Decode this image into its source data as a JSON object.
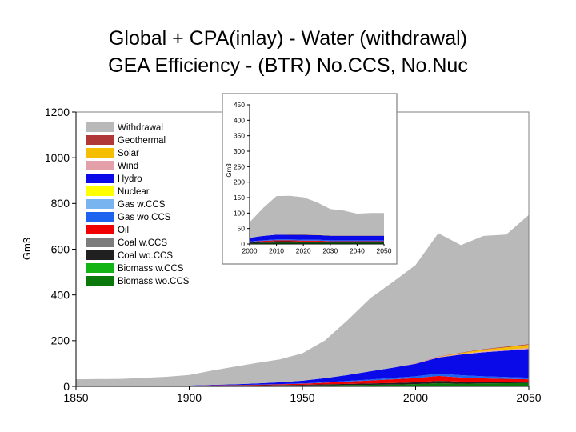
{
  "title_lines": [
    "Global + CPA(inlay) - Water (withdrawal)",
    "GEA Efficiency - (BTR) No.CCS, No.Nuc"
  ],
  "colors": {
    "Withdrawal": "#b9b9b9",
    "Geothermal": "#b03838",
    "Solar": "#f5be00",
    "Wind": "#e4a0a8",
    "Hydro": "#0a0ae8",
    "Nuclear": "#ffff00",
    "Gas w.CCS": "#78b4f0",
    "Gas wo.CCS": "#1c64f0",
    "Oil": "#f00000",
    "Coal w.CCS": "#7c7c7c",
    "Coal wo.CCS": "#202020",
    "Biomass w.CCS": "#14b414",
    "Biomass wo.CCS": "#0a780a"
  },
  "chart_data": [
    {
      "type": "area",
      "stacked": true,
      "title": "Global + CPA(inlay) - Water (withdrawal)",
      "subtitle": "GEA Efficiency - (BTR) No.CCS, No.Nuc",
      "ylabel": "Gm3",
      "xlim": [
        1850,
        2050
      ],
      "ylim": [
        0,
        1200
      ],
      "xticks": [
        "1850",
        "1900",
        "1950",
        "2000",
        "2050"
      ],
      "yticks": [
        "0",
        "200",
        "400",
        "600",
        "800",
        "1000",
        "1200"
      ],
      "legend_position": "top-left inside",
      "legend": [
        "Withdrawal",
        "Geothermal",
        "Solar",
        "Wind",
        "Hydro",
        "Nuclear",
        "Gas w.CCS",
        "Gas wo.CCS",
        "Oil",
        "Coal w.CCS",
        "Coal wo.CCS",
        "Biomass w.CCS",
        "Biomass wo.CCS"
      ],
      "x": [
        1850,
        1870,
        1890,
        1900,
        1910,
        1920,
        1930,
        1940,
        1950,
        1960,
        1970,
        1980,
        1990,
        2000,
        2010,
        2020,
        2030,
        2040,
        2050
      ],
      "series": [
        {
          "name": "Biomass wo.CCS",
          "values": [
            1,
            1,
            2,
            2,
            3,
            3,
            3,
            4,
            4,
            5,
            6,
            7,
            8,
            10,
            14,
            12,
            13,
            14,
            15
          ]
        },
        {
          "name": "Coal wo.CCS",
          "values": [
            0,
            0,
            0,
            1,
            1,
            2,
            2,
            2,
            3,
            4,
            5,
            6,
            7,
            8,
            10,
            9,
            8,
            7,
            6
          ]
        },
        {
          "name": "Oil",
          "values": [
            0,
            0,
            0,
            0,
            1,
            1,
            2,
            3,
            5,
            7,
            10,
            13,
            16,
            18,
            22,
            18,
            14,
            12,
            10
          ]
        },
        {
          "name": "Gas wo.CCS",
          "values": [
            0,
            0,
            0,
            0,
            0,
            0,
            1,
            1,
            1,
            2,
            3,
            4,
            6,
            8,
            10,
            10,
            9,
            8,
            7
          ]
        },
        {
          "name": "Hydro",
          "values": [
            0,
            0,
            0,
            1,
            2,
            3,
            5,
            8,
            12,
            18,
            26,
            36,
            45,
            55,
            70,
            90,
            105,
            115,
            125
          ]
        },
        {
          "name": "Wind",
          "values": [
            0,
            0,
            0,
            0,
            0,
            0,
            0,
            0,
            0,
            0,
            0,
            0,
            0,
            1,
            2,
            3,
            4,
            5,
            6
          ]
        },
        {
          "name": "Solar",
          "values": [
            0,
            0,
            0,
            0,
            0,
            0,
            0,
            0,
            0,
            0,
            0,
            0,
            0,
            0,
            1,
            4,
            8,
            10,
            13
          ]
        },
        {
          "name": "Geothermal",
          "values": [
            0,
            0,
            0,
            0,
            0,
            0,
            0,
            0,
            0,
            0,
            0,
            0,
            0,
            1,
            1,
            2,
            2,
            3,
            3
          ]
        },
        {
          "name": "Withdrawal",
          "values": [
            30,
            32,
            40,
            46,
            62,
            77,
            90,
            100,
            120,
            165,
            240,
            320,
            375,
            430,
            540,
            470,
            495,
            490,
            565
          ]
        }
      ]
    },
    {
      "type": "area",
      "stacked": true,
      "ylabel": "Gm3",
      "xlim": [
        2000,
        2050
      ],
      "ylim": [
        0,
        450
      ],
      "xticks": [
        "2000",
        "2010",
        "2020",
        "2030",
        "2040",
        "2050"
      ],
      "yticks": [
        "0",
        "50",
        "100",
        "150",
        "200",
        "250",
        "300",
        "350",
        "400",
        "450"
      ],
      "x": [
        2000,
        2005,
        2010,
        2015,
        2020,
        2025,
        2030,
        2035,
        2040,
        2045,
        2050
      ],
      "series": [
        {
          "name": "Biomass wo.CCS",
          "values": [
            2,
            3,
            4,
            4,
            4,
            4,
            4,
            4,
            4,
            4,
            4
          ]
        },
        {
          "name": "Coal wo.CCS",
          "values": [
            3,
            4,
            5,
            5,
            4,
            4,
            3,
            3,
            3,
            3,
            3
          ]
        },
        {
          "name": "Oil",
          "values": [
            2,
            3,
            3,
            3,
            3,
            3,
            2,
            2,
            2,
            2,
            2
          ]
        },
        {
          "name": "Gas wo.CCS",
          "values": [
            1,
            2,
            3,
            3,
            3,
            3,
            3,
            3,
            3,
            3,
            3
          ]
        },
        {
          "name": "Hydro",
          "values": [
            12,
            14,
            15,
            15,
            16,
            15,
            15,
            15,
            15,
            15,
            15
          ]
        },
        {
          "name": "Solar",
          "values": [
            0,
            0,
            0,
            1,
            1,
            1,
            1,
            1,
            1,
            1,
            1
          ]
        },
        {
          "name": "Withdrawal",
          "values": [
            50,
            90,
            125,
            125,
            120,
            105,
            85,
            80,
            70,
            72,
            72
          ]
        }
      ]
    }
  ]
}
